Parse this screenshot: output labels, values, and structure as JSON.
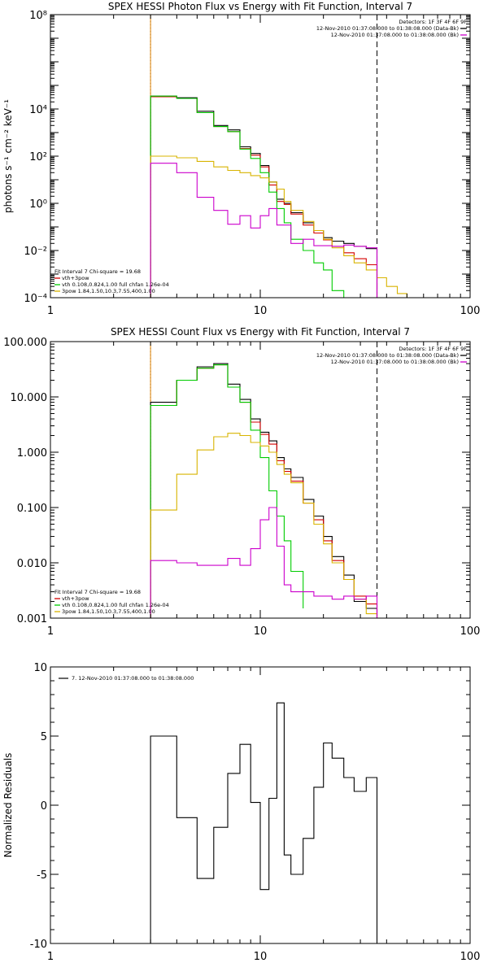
{
  "colors": {
    "black": "#000000",
    "red": "#d40000",
    "green": "#00cc00",
    "yellow": "#d8b400",
    "magenta": "#cc00cc",
    "orange_marker": "#e08000"
  },
  "chart_data": [
    {
      "type": "line",
      "step": true,
      "title": "SPEX HESSI Photon Flux vs Energy with Fit Function, Interval 7",
      "xlabel": "",
      "ylabel": "photons s⁻¹ cm⁻² keV⁻¹",
      "xscale": "log",
      "yscale": "log",
      "xlim": [
        1,
        100
      ],
      "ylim": [
        0.0001,
        100000000
      ],
      "xticks": [
        1,
        10,
        100
      ],
      "xtick_labels": [
        "1",
        "10",
        "100"
      ],
      "yticks": [
        0.0001,
        0.01,
        1,
        100,
        10000,
        100000000
      ],
      "ytick_labels": [
        "10⁻⁴",
        "10⁻²",
        "10⁰",
        "10²",
        "10⁴",
        "10⁸"
      ],
      "grid": false,
      "legend_position": "bottom-left",
      "vlines": [
        {
          "x": 3,
          "style": "dotted",
          "color": "black"
        },
        {
          "x": 3,
          "style": "solid",
          "color": "orange"
        },
        {
          "x": 36,
          "style": "dashed",
          "color": "black"
        }
      ],
      "detector_box": {
        "lines": [
          "Detectors: 1F 3F 4F 6F 9F",
          "12-Nov-2010 01:37:08.000 to 01:38:08.000 (Data-Bk)",
          "12-Nov-2010 01:37:08.000 to 01:38:08.000 (Bk)"
        ],
        "swatches": [
          "black",
          "magenta"
        ]
      },
      "fit_legend": {
        "lines": [
          "Fit Interval 7   Chi-square = 19.68",
          "vth+3pow",
          "vth 0.108,0.824,1.00  full chfan 1.26e-04",
          "3pow 1.84,1.50,10.3,7.55,400,1.00"
        ],
        "colors": [
          "",
          "red",
          "green",
          "yellow"
        ]
      },
      "series": [
        {
          "name": "Data-Bk",
          "color": "black",
          "edges": [
            3,
            4,
            5,
            6,
            7,
            8,
            9,
            10,
            11,
            12,
            13,
            14,
            16,
            18,
            20,
            22,
            25,
            28,
            32,
            36
          ],
          "values": [
            35000,
            30000,
            8000,
            2000,
            1300,
            250,
            130,
            40,
            8,
            1.5,
            1.0,
            0.4,
            0.15,
            0.07,
            0.035,
            0.025,
            0.02,
            0.015,
            0.012
          ]
        },
        {
          "name": "vth+3pow",
          "color": "red",
          "edges": [
            3,
            4,
            5,
            6,
            7,
            8,
            9,
            10,
            11,
            12,
            13,
            14,
            16,
            18,
            20,
            22,
            25,
            28,
            32,
            36
          ],
          "values": [
            33000,
            28000,
            7000,
            1800,
            1100,
            210,
            110,
            35,
            6,
            1.2,
            0.9,
            0.35,
            0.12,
            0.055,
            0.028,
            0.015,
            0.008,
            0.0045,
            0.0025
          ]
        },
        {
          "name": "vth",
          "color": "green",
          "edges": [
            3,
            4,
            5,
            6,
            7,
            8,
            9,
            10,
            11,
            12,
            13,
            14,
            16,
            18,
            20,
            22,
            25
          ],
          "values": [
            35000,
            28000,
            7000,
            1800,
            1100,
            200,
            80,
            20,
            3,
            0.6,
            0.15,
            0.03,
            0.01,
            0.003,
            0.0015,
            0.0002
          ]
        },
        {
          "name": "3pow",
          "color": "yellow",
          "edges": [
            3,
            4,
            5,
            6,
            7,
            8,
            9,
            10,
            11,
            12,
            13,
            14,
            16,
            18,
            20,
            22,
            25,
            28,
            32,
            36,
            40,
            45,
            50
          ],
          "values": [
            100,
            85,
            60,
            35,
            25,
            20,
            15,
            12,
            8,
            4,
            1.2,
            0.5,
            0.17,
            0.07,
            0.03,
            0.013,
            0.006,
            0.003,
            0.0015,
            0.0007,
            0.0003,
            0.00015
          ]
        },
        {
          "name": "Bk",
          "color": "magenta",
          "edges": [
            3,
            4,
            5,
            6,
            7,
            8,
            9,
            10,
            11,
            12,
            14,
            16,
            18,
            20,
            22,
            25,
            28,
            32,
            36
          ],
          "values": [
            50,
            20,
            1.8,
            0.5,
            0.13,
            0.3,
            0.09,
            0.3,
            0.6,
            0.12,
            0.02,
            0.03,
            0.016,
            0.016,
            0.015,
            0.017,
            0.015,
            0.013
          ]
        }
      ]
    },
    {
      "type": "line",
      "step": true,
      "title": "SPEX HESSI Count Flux vs Energy with Fit Function, Interval 7",
      "xlabel": "",
      "ylabel": "",
      "xscale": "log",
      "yscale": "log",
      "xlim": [
        1,
        100
      ],
      "ylim": [
        0.001,
        100
      ],
      "xticks": [
        1,
        10,
        100
      ],
      "xtick_labels": [
        "1",
        "10",
        "100"
      ],
      "yticks": [
        0.001,
        0.01,
        0.1,
        1,
        10,
        100
      ],
      "ytick_labels": [
        "0.001",
        "0.010",
        "0.100",
        "1.000",
        "10.000",
        "100.000"
      ],
      "grid": false,
      "legend_position": "bottom-left",
      "vlines": [
        {
          "x": 3,
          "style": "dotted",
          "color": "black"
        },
        {
          "x": 3,
          "style": "solid",
          "color": "orange"
        },
        {
          "x": 36,
          "style": "dashed",
          "color": "black"
        }
      ],
      "detector_box": {
        "lines": [
          "Detectors: 1F 3F 4F 6F 9F",
          "12-Nov-2010 01:37:08.000 to 01:38:08.000 (Data-Bk)",
          "12-Nov-2010 01:37:08.000 to 01:38:08.000 (Bk)"
        ],
        "swatches": [
          "black",
          "magenta"
        ]
      },
      "fit_legend": {
        "lines": [
          "Fit Interval 7   Chi-square = 19.68",
          "vth+3pow",
          "vth 0.108,0.824,1.00  full chfan 1.26e-04",
          "3pow 1.84,1.50,10.3,7.55,400,1.00"
        ],
        "colors": [
          "",
          "red",
          "green",
          "yellow"
        ]
      },
      "series": [
        {
          "name": "Data-Bk",
          "color": "black",
          "edges": [
            3,
            4,
            5,
            6,
            7,
            8,
            9,
            10,
            11,
            12,
            13,
            14,
            16,
            18,
            20,
            22,
            25,
            28,
            32,
            36
          ],
          "values": [
            8,
            20,
            35,
            40,
            17,
            9,
            4,
            2.3,
            1.6,
            0.8,
            0.5,
            0.35,
            0.14,
            0.07,
            0.03,
            0.013,
            0.006,
            0.002,
            0.0015
          ]
        },
        {
          "name": "vth+3pow",
          "color": "red",
          "edges": [
            3,
            4,
            5,
            6,
            7,
            8,
            9,
            10,
            11,
            12,
            13,
            14,
            16,
            18,
            20,
            22,
            25,
            28,
            32,
            36
          ],
          "values": [
            7,
            20,
            33,
            38,
            15,
            8,
            3.5,
            2.1,
            1.4,
            0.7,
            0.45,
            0.3,
            0.12,
            0.06,
            0.025,
            0.011,
            0.005,
            0.0025,
            0.0018
          ]
        },
        {
          "name": "vth",
          "color": "green",
          "edges": [
            3,
            4,
            5,
            6,
            7,
            8,
            9,
            10,
            11,
            12,
            13,
            14,
            16
          ],
          "values": [
            7,
            20,
            33,
            38,
            15,
            8,
            2.5,
            0.8,
            0.2,
            0.07,
            0.025,
            0.007,
            0.0015
          ]
        },
        {
          "name": "3pow",
          "color": "yellow",
          "edges": [
            3,
            4,
            5,
            6,
            7,
            8,
            9,
            10,
            11,
            12,
            13,
            14,
            16,
            18,
            20,
            22,
            25,
            28,
            32,
            36
          ],
          "values": [
            0.09,
            0.4,
            1.1,
            1.9,
            2.2,
            2.0,
            1.5,
            1.3,
            1.0,
            0.6,
            0.4,
            0.28,
            0.12,
            0.05,
            0.022,
            0.01,
            0.005,
            0.0022,
            0.0012
          ]
        },
        {
          "name": "Bk",
          "color": "magenta",
          "edges": [
            3,
            4,
            5,
            6,
            7,
            8,
            9,
            10,
            11,
            12,
            13,
            14,
            16,
            18,
            20,
            22,
            25,
            28,
            32,
            36
          ],
          "values": [
            0.011,
            0.01,
            0.009,
            0.009,
            0.012,
            0.009,
            0.018,
            0.06,
            0.1,
            0.02,
            0.004,
            0.003,
            0.003,
            0.0025,
            0.0025,
            0.0022,
            0.0025,
            0.0022,
            0.0025
          ]
        }
      ]
    },
    {
      "type": "line",
      "step": true,
      "title": "",
      "xlabel": "",
      "ylabel": "Normalized Residuals",
      "xscale": "log",
      "yscale": "linear",
      "xlim": [
        1,
        100
      ],
      "ylim": [
        -10,
        10
      ],
      "xticks": [
        1,
        10,
        100
      ],
      "xtick_labels": [
        "1",
        "10",
        "100"
      ],
      "yticks": [
        -10,
        -5,
        0,
        5,
        10
      ],
      "ytick_labels": [
        "-10",
        "-5",
        "0",
        "5",
        "10"
      ],
      "grid": false,
      "legend_position": "top-left",
      "legend": {
        "lines": [
          "7. 12-Nov-2010 01:37:08.000 to 01:38:08.000"
        ],
        "colors": [
          "black"
        ]
      },
      "series": [
        {
          "name": "7. 12-Nov-2010 01:37:08.000 to 01:38:08.000",
          "color": "black",
          "edges": [
            3,
            4,
            5,
            6,
            7,
            8,
            9,
            10,
            11,
            12,
            13,
            14,
            16,
            18,
            20,
            22,
            25,
            28,
            32,
            36
          ],
          "values": [
            5,
            -0.9,
            -5.3,
            -1.6,
            2.3,
            4.4,
            0.2,
            -6.1,
            0.5,
            7.4,
            -3.6,
            -5.0,
            -2.4,
            1.3,
            4.5,
            3.4,
            2.0,
            1.0,
            2.0
          ]
        }
      ]
    }
  ]
}
